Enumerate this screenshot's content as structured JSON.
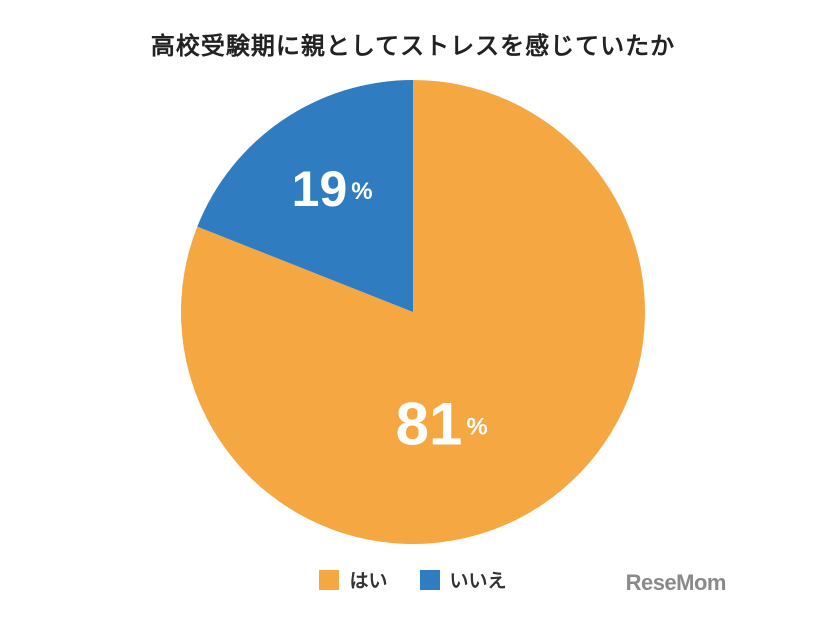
{
  "chart_data": {
    "type": "pie",
    "title": "高校受験期に親としてストレスを感じていたか",
    "slices": [
      {
        "label": "はい",
        "value": 81,
        "display": "81",
        "unit": "%",
        "color": "#F5A742"
      },
      {
        "label": "いいえ",
        "value": 19,
        "display": "19",
        "unit": "%",
        "color": "#2F7DC0"
      }
    ],
    "legend_position": "bottom"
  },
  "logo": {
    "text": "ReseMom"
  }
}
